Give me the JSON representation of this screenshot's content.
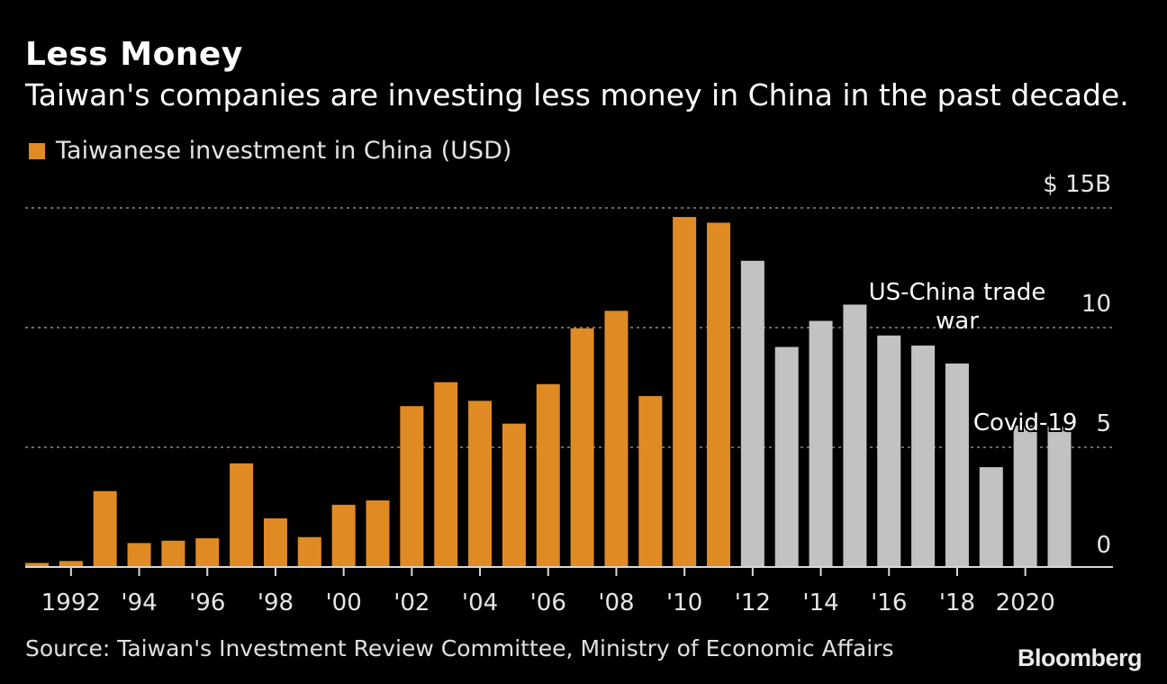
{
  "title": "Less Money",
  "subtitle": "Taiwan's companies are investing less money in China in the past decade.",
  "legend": {
    "label": "Taiwanese investment in China (USD)",
    "color": "#e08a24"
  },
  "source": "Source: Taiwan's Investment Review Committee, Ministry of Economic Affairs",
  "brand": "Bloomberg",
  "chart_data": {
    "type": "bar",
    "title": "Less Money",
    "xlabel": "",
    "ylabel": "Taiwanese investment in China (USD)",
    "ylim": [
      0,
      15
    ],
    "y_ticks": [
      {
        "value": 15,
        "label": "$ 15B"
      },
      {
        "value": 10,
        "label": "10"
      },
      {
        "value": 5,
        "label": "5"
      },
      {
        "value": 0,
        "label": "0"
      }
    ],
    "x_ticks": [
      {
        "year": 1992,
        "label": "1992"
      },
      {
        "year": 1994,
        "label": "'94"
      },
      {
        "year": 1996,
        "label": "'96"
      },
      {
        "year": 1998,
        "label": "'98"
      },
      {
        "year": 2000,
        "label": "'00"
      },
      {
        "year": 2002,
        "label": "'02"
      },
      {
        "year": 2004,
        "label": "'04"
      },
      {
        "year": 2006,
        "label": "'06"
      },
      {
        "year": 2008,
        "label": "'08"
      },
      {
        "year": 2010,
        "label": "'10"
      },
      {
        "year": 2012,
        "label": "'12"
      },
      {
        "year": 2014,
        "label": "'14"
      },
      {
        "year": 2016,
        "label": "'16"
      },
      {
        "year": 2018,
        "label": "'18"
      },
      {
        "year": 2020,
        "label": "2020"
      }
    ],
    "categories": [
      1991,
      1992,
      1993,
      1994,
      1995,
      1996,
      1997,
      1998,
      1999,
      2000,
      2001,
      2002,
      2003,
      2004,
      2005,
      2006,
      2007,
      2008,
      2009,
      2010,
      2011,
      2012,
      2013,
      2014,
      2015,
      2016,
      2017,
      2018,
      2019,
      2020,
      2021
    ],
    "values": [
      0.17,
      0.25,
      3.17,
      1.0,
      1.1,
      1.2,
      4.33,
      2.03,
      1.25,
      2.6,
      2.78,
      6.72,
      7.72,
      6.94,
      5.99,
      7.64,
      9.97,
      10.7,
      7.14,
      14.62,
      14.38,
      12.79,
      9.19,
      10.28,
      10.96,
      9.67,
      9.25,
      8.5,
      4.17,
      5.91,
      5.86
    ],
    "colors": {
      "highlight": "#e08a24",
      "muted": "#c2c2c2",
      "split_year": 2012
    },
    "annotations": [
      {
        "lines": [
          "US-China trade",
          "war"
        ],
        "year": 2018
      },
      {
        "lines": [
          "Covid-19"
        ],
        "year": 2020
      }
    ]
  }
}
